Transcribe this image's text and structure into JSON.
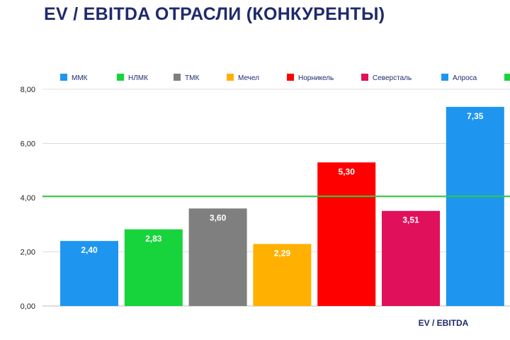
{
  "title": "EV / EBITDA ОТРАСЛИ (КОНКУРЕНТЫ)",
  "chart_data": {
    "type": "bar",
    "title": "EV / EBITDA ОТРАСЛИ (КОНКУРЕНТЫ)",
    "xlabel": "EV / EBITDA",
    "ylabel": "",
    "ylim": [
      0,
      8
    ],
    "yticks": [
      "0,00",
      "2,00",
      "4,00",
      "6,00",
      "8,00"
    ],
    "ytick_values": [
      0,
      2,
      4,
      6,
      8
    ],
    "grid": true,
    "legend_position": "top",
    "categories": [
      "ММК",
      "НЛМК",
      "ТМК",
      "Мечел",
      "Норникель",
      "Северсталь",
      "Алроса"
    ],
    "values": [
      2.4,
      2.83,
      3.6,
      2.29,
      5.3,
      3.51,
      7.35
    ],
    "value_labels": [
      "2,40",
      "2,83",
      "3,60",
      "2,29",
      "5,30",
      "3,51",
      "7,35"
    ],
    "colors": [
      "#1e96f0",
      "#17d43c",
      "#7f7f7f",
      "#ffb000",
      "#ff0000",
      "#e0105a",
      "#1e96f0"
    ],
    "reference_line": {
      "value": 4.05,
      "color": "#2ecc40"
    },
    "extra_legend_color": "#17d43c"
  }
}
